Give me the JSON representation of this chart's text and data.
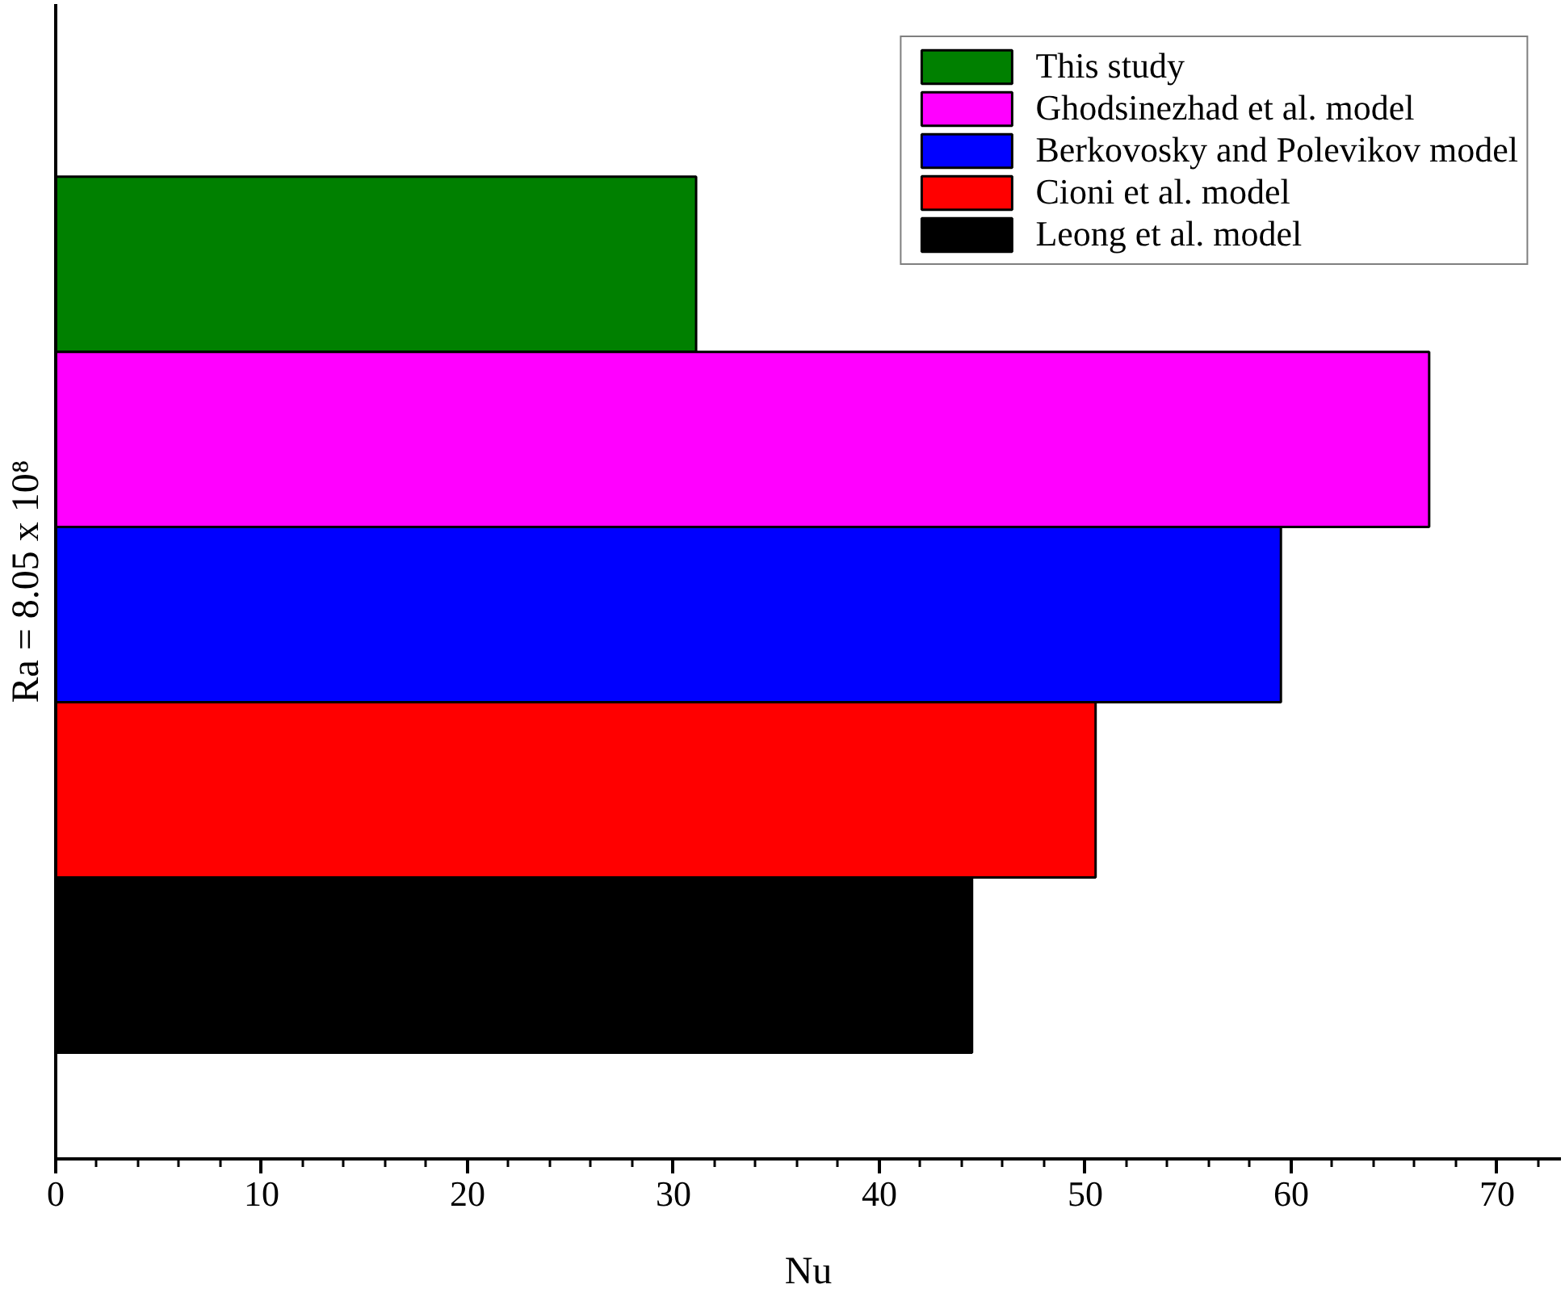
{
  "chart_data": {
    "type": "bar",
    "orientation": "horizontal",
    "categories": [
      null
    ],
    "series": [
      {
        "name": "This study",
        "color": "#008000",
        "values": [
          31.1
        ]
      },
      {
        "name": "Ghodsinezhad et al. model",
        "color": "#ff00ff",
        "values": [
          66.7
        ]
      },
      {
        "name": "Berkovosky and Polevikov model",
        "color": "#0000ff",
        "values": [
          59.5
        ]
      },
      {
        "name": "Cioni et al. model",
        "color": "#ff0000",
        "values": [
          50.5
        ]
      },
      {
        "name": "Leong et al. model",
        "color": "#000000",
        "values": [
          44.5
        ]
      }
    ],
    "xlabel": "Nu",
    "ylabel": "Ra = 8.05 x 10⁸",
    "xlim": [
      0,
      73.1
    ],
    "xticks": [
      0,
      10,
      20,
      30,
      40,
      50,
      60,
      70
    ],
    "legend": "top right"
  }
}
